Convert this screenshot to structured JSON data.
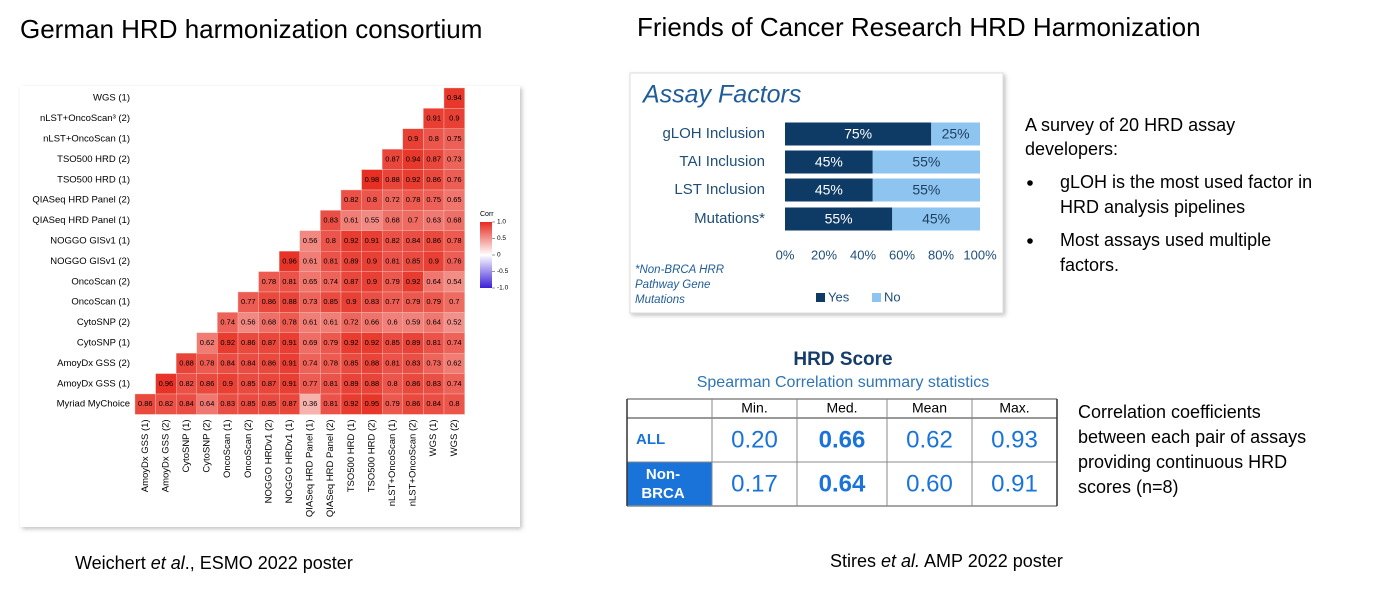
{
  "left_title": "German HRD harmonization consortium",
  "right_title": "Friends of Cancer Research HRD Harmonization",
  "chart_data": [
    {
      "type": "heatmap",
      "legend_title": "Corr",
      "colormap": [
        "#3b1fd8",
        "#ffffff",
        "#e62b1f"
      ],
      "clim": [
        -1,
        1
      ],
      "colorbar_ticks": [
        {
          "value": 1,
          "label": "1.0"
        },
        0.5,
        0,
        -0.5,
        {
          "value": -1,
          "label": "-1.0"
        }
      ],
      "columns": [
        "AmoyDx GSS (1)",
        "AmoyDx GSS (2)",
        "CytoSNP (1)",
        "CytoSNP (2)",
        "OncoScan (1)",
        "OncoScan (2)",
        "NOGGO HRDv1 (2)",
        "NOGGO HRDv1 (1)",
        "QIASeq HRD Panel (1)",
        "QIASeq HRD Panel (2)",
        "TSO500 HRD (1)",
        "TSO500 HRD (2)",
        "nLST+OncoScan (1)",
        "nLST+OncoScan (2)",
        "WGS (1)",
        "WGS (2)"
      ],
      "rows": [
        {
          "label": "WGS (1)",
          "values": [
            0.94
          ]
        },
        {
          "label": "nLST+OncoScan³ (2)",
          "values": [
            0.91,
            0.9
          ]
        },
        {
          "label": "nLST+OncoScan (1)",
          "values": [
            0.9,
            0.8,
            0.75
          ]
        },
        {
          "label": "TSO500 HRD (2)",
          "values": [
            0.87,
            0.94,
            0.87,
            0.73
          ]
        },
        {
          "label": "TSO500 HRD (1)",
          "values": [
            0.98,
            0.88,
            0.92,
            0.86,
            0.76
          ]
        },
        {
          "label": "QIASeq HRD Panel (2)",
          "values": [
            0.82,
            0.8,
            0.72,
            0.78,
            0.75,
            0.65
          ]
        },
        {
          "label": "QIASeq HRD Panel (1)",
          "values": [
            0.83,
            0.61,
            0.55,
            0.68,
            0.7,
            0.63,
            0.68
          ]
        },
        {
          "label": "NOGGO GISv1 (1)",
          "values": [
            0.56,
            0.8,
            0.92,
            0.91,
            0.82,
            0.84,
            0.86,
            0.78
          ]
        },
        {
          "label": "NOGGO GISv1 (2)",
          "values": [
            0.96,
            0.61,
            0.81,
            0.89,
            0.9,
            0.81,
            0.85,
            0.9,
            0.76
          ]
        },
        {
          "label": "OncoScan (2)",
          "values": [
            0.78,
            0.81,
            0.65,
            0.74,
            0.87,
            0.9,
            0.79,
            0.92,
            0.64,
            0.54
          ]
        },
        {
          "label": "OncoScan (1)",
          "values": [
            0.77,
            0.86,
            0.88,
            0.73,
            0.85,
            0.9,
            0.83,
            0.77,
            0.79,
            0.79,
            0.7
          ]
        },
        {
          "label": "CytoSNP  (2)",
          "values": [
            0.74,
            0.56,
            0.68,
            0.78,
            0.61,
            0.61,
            0.72,
            0.66,
            0.6,
            0.59,
            0.64,
            0.52
          ]
        },
        {
          "label": "CytoSNP  (1)",
          "values": [
            0.62,
            0.92,
            0.86,
            0.87,
            0.91,
            0.69,
            0.79,
            0.92,
            0.92,
            0.85,
            0.89,
            0.81,
            0.74
          ]
        },
        {
          "label": "AmoyDx GSS (2)",
          "values": [
            0.88,
            0.78,
            0.84,
            0.84,
            0.86,
            0.91,
            0.74,
            0.78,
            0.85,
            0.88,
            0.81,
            0.83,
            0.73,
            0.62
          ]
        },
        {
          "label": "AmoyDx GSS (1)",
          "values": [
            0.96,
            0.82,
            0.86,
            0.9,
            0.85,
            0.87,
            0.91,
            0.77,
            0.81,
            0.89,
            0.88,
            0.8,
            0.86,
            0.83,
            0.74
          ]
        },
        {
          "label": "Myriad MyChoice",
          "values": [
            0.86,
            0.82,
            0.84,
            0.64,
            0.83,
            0.85,
            0.85,
            0.87,
            0.36,
            0.81,
            0.92,
            0.95,
            0.79,
            0.86,
            0.84,
            0.8
          ]
        }
      ]
    },
    {
      "type": "stacked-bar",
      "orientation": "horizontal",
      "title": "Assay Factors",
      "categories": [
        "gLOH Inclusion",
        "TAI Inclusion",
        "LST Inclusion",
        "Mutations*"
      ],
      "series": [
        {
          "name": "Yes",
          "color": "#0e3a66",
          "values": [
            75,
            45,
            45,
            55
          ],
          "value_labels": [
            "75%",
            "45%",
            "45%",
            "55%"
          ]
        },
        {
          "name": "No",
          "color": "#8ec4f0",
          "values": [
            25,
            55,
            55,
            45
          ],
          "value_labels": [
            "25%",
            "55%",
            "55%",
            "45%"
          ]
        }
      ],
      "xlim": [
        0,
        100
      ],
      "xticks": [
        {
          "value": 0,
          "label": "0%"
        },
        {
          "value": 20,
          "label": "20%"
        },
        {
          "value": 40,
          "label": "40%"
        },
        {
          "value": 60,
          "label": "60%"
        },
        {
          "value": 80,
          "label": "80%"
        },
        {
          "value": 100,
          "label": "100%"
        }
      ],
      "footnote": [
        "*Non-BRCA HRR",
        "Pathway Gene",
        "Mutations"
      ]
    }
  ],
  "survey": {
    "intro": [
      "A survey of 20 HRD assay",
      "developers:"
    ],
    "bullets": [
      [
        "gLOH is the most used factor in",
        "HRD analysis pipelines"
      ],
      [
        "Most assays used multiple",
        "factors."
      ]
    ]
  },
  "table": {
    "title": "HRD Score",
    "subtitle": "Spearman Correlation summary statistics",
    "header": [
      "Min.",
      "Med.",
      "Mean",
      "Max."
    ],
    "rows": [
      {
        "label": "ALL",
        "values": [
          "0.20",
          "0.66",
          "0.62",
          "0.93"
        ]
      },
      {
        "label": "Non-BRCA",
        "values": [
          "0.17",
          "0.64",
          "0.60",
          "0.91"
        ]
      }
    ]
  },
  "table_caption": [
    "Correlation coefficients",
    "between each pair of assays",
    "providing continuous HRD",
    "scores (n=8)"
  ],
  "citation_left": {
    "author": "Weichert ",
    "etal": "et al",
    "rest": "., ESMO 2022 poster"
  },
  "citation_right": {
    "author": "Stires ",
    "etal": "et al.",
    "rest": " AMP 2022 poster"
  }
}
